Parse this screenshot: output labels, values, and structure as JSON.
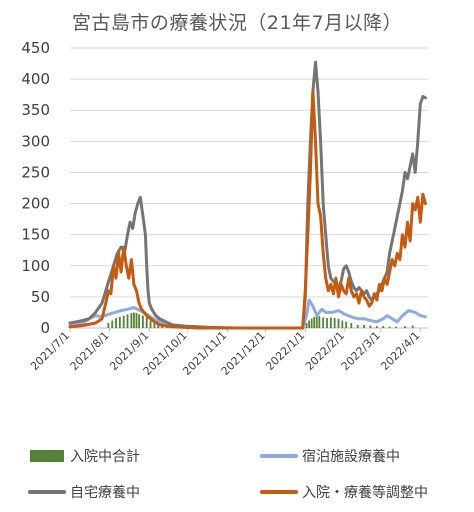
{
  "chart_data": {
    "type": "line",
    "title": "宮古島市の療養状況（21年7月以降）",
    "xlabel": "",
    "ylabel": "",
    "ylim": [
      0,
      450
    ],
    "yticks": [
      0,
      50,
      100,
      150,
      200,
      250,
      300,
      350,
      400,
      450
    ],
    "xticks": [
      "2021/7/1",
      "2021/8/1",
      "2021/9/1",
      "2021/10/1",
      "2021/11/1",
      "2021/12/1",
      "2022/1/1",
      "2022/2/1",
      "2022/3/1",
      "2022/4/1"
    ],
    "grid": "horizontal",
    "legend": "bottom",
    "x_unit": "days since 2021/7/1 (each tick = month start)",
    "series": [
      {
        "name": "入院中合計",
        "type": "bar",
        "color": "#548235",
        "points": [
          [
            30,
            8
          ],
          [
            33,
            12
          ],
          [
            36,
            16
          ],
          [
            39,
            18
          ],
          [
            42,
            20
          ],
          [
            45,
            22
          ],
          [
            48,
            24
          ],
          [
            50,
            25
          ],
          [
            52,
            24
          ],
          [
            54,
            22
          ],
          [
            57,
            20
          ],
          [
            60,
            17
          ],
          [
            63,
            12
          ],
          [
            66,
            8
          ],
          [
            69,
            5
          ],
          [
            72,
            3
          ],
          [
            76,
            2
          ],
          [
            80,
            1
          ],
          [
            185,
            8
          ],
          [
            187,
            12
          ],
          [
            189,
            15
          ],
          [
            191,
            18
          ],
          [
            193,
            20
          ],
          [
            195,
            19
          ],
          [
            198,
            17
          ],
          [
            201,
            16
          ],
          [
            204,
            17
          ],
          [
            207,
            16
          ],
          [
            210,
            15
          ],
          [
            213,
            12
          ],
          [
            216,
            10
          ],
          [
            220,
            8
          ],
          [
            225,
            5
          ],
          [
            230,
            5
          ],
          [
            235,
            4
          ],
          [
            240,
            3
          ],
          [
            245,
            3
          ],
          [
            250,
            2
          ],
          [
            255,
            2
          ],
          [
            262,
            3
          ],
          [
            268,
            4
          ]
        ]
      },
      {
        "name": "宿泊施設療養中",
        "type": "line",
        "color": "#8faadc",
        "points": [
          [
            0,
            5
          ],
          [
            10,
            8
          ],
          [
            15,
            15
          ],
          [
            20,
            20
          ],
          [
            25,
            18
          ],
          [
            30,
            22
          ],
          [
            35,
            25
          ],
          [
            40,
            28
          ],
          [
            45,
            30
          ],
          [
            50,
            33
          ],
          [
            55,
            28
          ],
          [
            60,
            22
          ],
          [
            65,
            15
          ],
          [
            70,
            10
          ],
          [
            75,
            5
          ],
          [
            85,
            3
          ],
          [
            100,
            1
          ],
          [
            120,
            0
          ],
          [
            182,
            0
          ],
          [
            185,
            20
          ],
          [
            187,
            45
          ],
          [
            190,
            35
          ],
          [
            193,
            20
          ],
          [
            197,
            30
          ],
          [
            200,
            25
          ],
          [
            205,
            25
          ],
          [
            210,
            28
          ],
          [
            215,
            22
          ],
          [
            220,
            18
          ],
          [
            225,
            15
          ],
          [
            230,
            15
          ],
          [
            235,
            12
          ],
          [
            240,
            10
          ],
          [
            245,
            15
          ],
          [
            248,
            20
          ],
          [
            252,
            15
          ],
          [
            256,
            10
          ],
          [
            260,
            20
          ],
          [
            265,
            28
          ],
          [
            270,
            25
          ],
          [
            274,
            20
          ],
          [
            278,
            18
          ]
        ]
      },
      {
        "name": "自宅療養中",
        "type": "line",
        "color": "#757575",
        "points": [
          [
            0,
            8
          ],
          [
            5,
            10
          ],
          [
            10,
            12
          ],
          [
            15,
            15
          ],
          [
            20,
            25
          ],
          [
            25,
            40
          ],
          [
            28,
            60
          ],
          [
            31,
            80
          ],
          [
            34,
            100
          ],
          [
            37,
            120
          ],
          [
            40,
            130
          ],
          [
            43,
            125
          ],
          [
            45,
            150
          ],
          [
            47,
            170
          ],
          [
            49,
            160
          ],
          [
            51,
            185
          ],
          [
            53,
            200
          ],
          [
            55,
            210
          ],
          [
            57,
            180
          ],
          [
            59,
            150
          ],
          [
            60,
            100
          ],
          [
            61,
            60
          ],
          [
            62,
            40
          ],
          [
            64,
            30
          ],
          [
            67,
            20
          ],
          [
            70,
            15
          ],
          [
            75,
            10
          ],
          [
            80,
            5
          ],
          [
            90,
            3
          ],
          [
            110,
            1
          ],
          [
            130,
            0
          ],
          [
            182,
            0
          ],
          [
            184,
            50
          ],
          [
            186,
            200
          ],
          [
            188,
            300
          ],
          [
            190,
            380
          ],
          [
            192,
            427
          ],
          [
            194,
            380
          ],
          [
            196,
            300
          ],
          [
            198,
            200
          ],
          [
            200,
            150
          ],
          [
            202,
            100
          ],
          [
            204,
            80
          ],
          [
            206,
            75
          ],
          [
            208,
            70
          ],
          [
            210,
            65
          ],
          [
            212,
            75
          ],
          [
            214,
            95
          ],
          [
            216,
            100
          ],
          [
            218,
            90
          ],
          [
            220,
            75
          ],
          [
            222,
            65
          ],
          [
            224,
            60
          ],
          [
            226,
            65
          ],
          [
            228,
            60
          ],
          [
            230,
            55
          ],
          [
            232,
            60
          ],
          [
            234,
            50
          ],
          [
            236,
            45
          ],
          [
            238,
            50
          ],
          [
            240,
            55
          ],
          [
            242,
            60
          ],
          [
            244,
            70
          ],
          [
            246,
            80
          ],
          [
            248,
            90
          ],
          [
            250,
            120
          ],
          [
            252,
            140
          ],
          [
            254,
            160
          ],
          [
            256,
            180
          ],
          [
            258,
            200
          ],
          [
            260,
            220
          ],
          [
            262,
            250
          ],
          [
            264,
            240
          ],
          [
            266,
            260
          ],
          [
            268,
            280
          ],
          [
            270,
            250
          ],
          [
            272,
            300
          ],
          [
            274,
            360
          ],
          [
            276,
            372
          ],
          [
            278,
            370
          ]
        ]
      },
      {
        "name": "入院・療養等調整中",
        "type": "line",
        "color": "#c55a11",
        "points": [
          [
            0,
            2
          ],
          [
            10,
            4
          ],
          [
            20,
            8
          ],
          [
            25,
            15
          ],
          [
            28,
            40
          ],
          [
            30,
            60
          ],
          [
            32,
            55
          ],
          [
            34,
            100
          ],
          [
            36,
            80
          ],
          [
            38,
            120
          ],
          [
            40,
            90
          ],
          [
            42,
            130
          ],
          [
            44,
            100
          ],
          [
            46,
            80
          ],
          [
            48,
            110
          ],
          [
            50,
            70
          ],
          [
            52,
            60
          ],
          [
            54,
            40
          ],
          [
            56,
            30
          ],
          [
            58,
            25
          ],
          [
            60,
            20
          ],
          [
            63,
            15
          ],
          [
            66,
            10
          ],
          [
            70,
            5
          ],
          [
            80,
            2
          ],
          [
            100,
            0
          ],
          [
            182,
            0
          ],
          [
            184,
            60
          ],
          [
            186,
            150
          ],
          [
            188,
            250
          ],
          [
            190,
            380
          ],
          [
            192,
            300
          ],
          [
            194,
            200
          ],
          [
            196,
            180
          ],
          [
            198,
            120
          ],
          [
            200,
            80
          ],
          [
            202,
            60
          ],
          [
            204,
            70
          ],
          [
            206,
            55
          ],
          [
            208,
            80
          ],
          [
            210,
            50
          ],
          [
            212,
            70
          ],
          [
            214,
            60
          ],
          [
            216,
            55
          ],
          [
            218,
            80
          ],
          [
            220,
            60
          ],
          [
            222,
            50
          ],
          [
            224,
            55
          ],
          [
            226,
            40
          ],
          [
            228,
            60
          ],
          [
            230,
            50
          ],
          [
            232,
            45
          ],
          [
            234,
            35
          ],
          [
            236,
            40
          ],
          [
            238,
            55
          ],
          [
            240,
            45
          ],
          [
            242,
            70
          ],
          [
            244,
            60
          ],
          [
            246,
            80
          ],
          [
            248,
            70
          ],
          [
            250,
            90
          ],
          [
            252,
            110
          ],
          [
            254,
            100
          ],
          [
            256,
            120
          ],
          [
            258,
            110
          ],
          [
            260,
            150
          ],
          [
            262,
            130
          ],
          [
            264,
            170
          ],
          [
            266,
            140
          ],
          [
            268,
            200
          ],
          [
            270,
            190
          ],
          [
            272,
            210
          ],
          [
            274,
            170
          ],
          [
            276,
            215
          ],
          [
            278,
            200
          ]
        ]
      }
    ]
  }
}
